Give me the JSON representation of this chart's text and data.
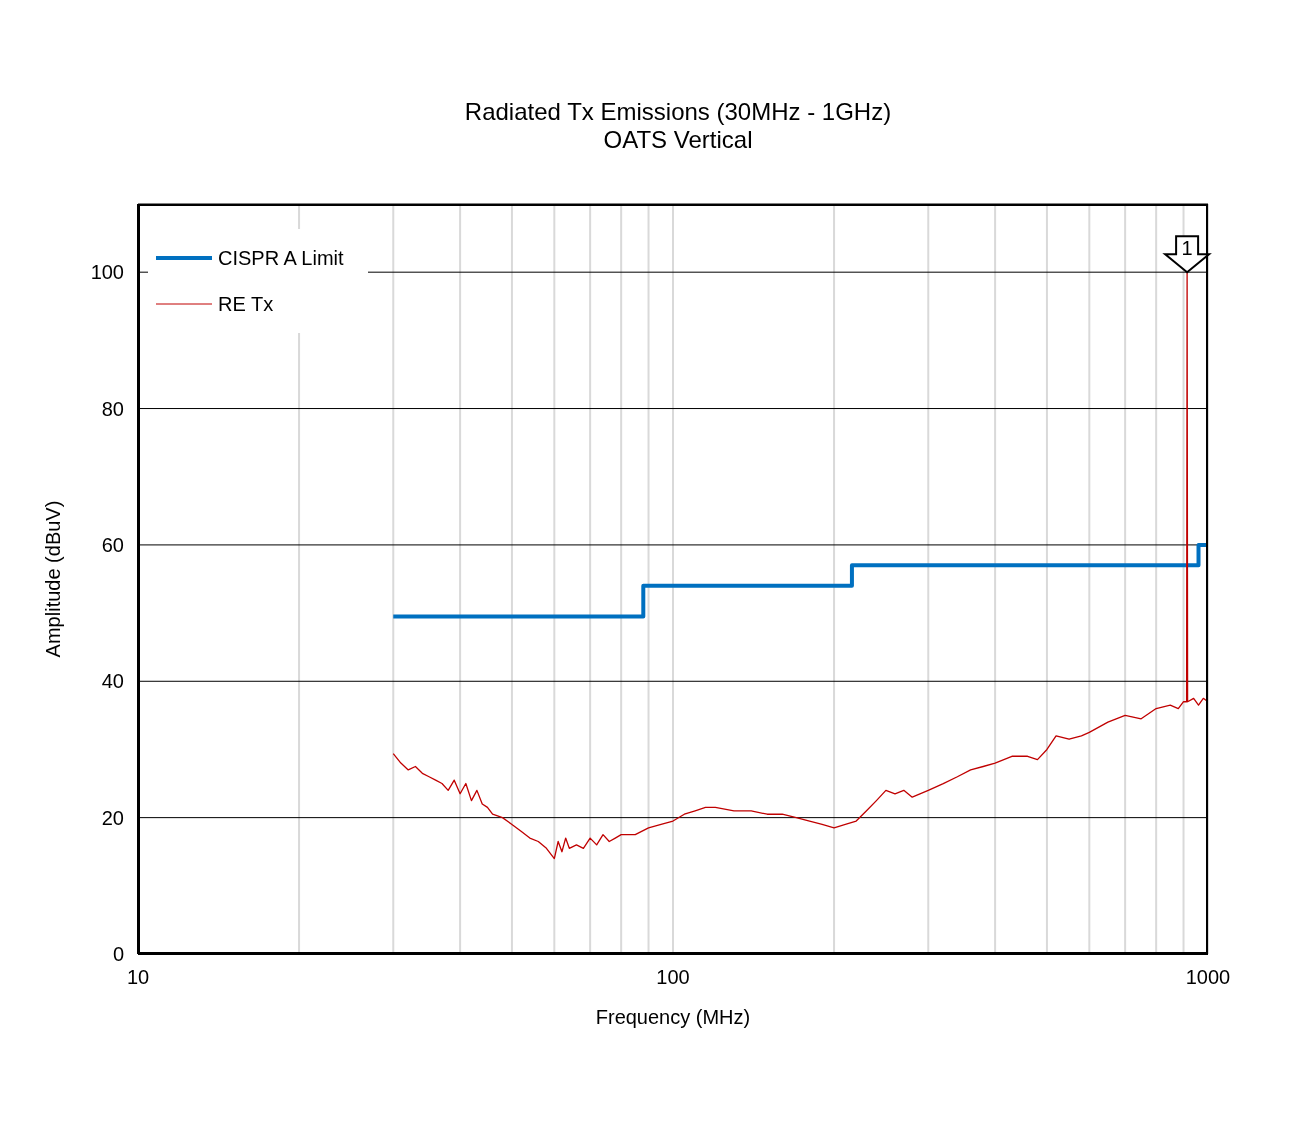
{
  "chart_data": {
    "type": "line",
    "title": "Radiated Tx Emissions (30MHz - 1GHz)",
    "subtitle": "OATS Vertical",
    "xlabel": "Frequency (MHz)",
    "ylabel": "Amplitude (dBuV)",
    "xlim": [
      10,
      1000
    ],
    "xticks": [
      10,
      {
        "value": 20,
        "label": null
      },
      {
        "value": 30,
        "label": null
      },
      {
        "value": 40,
        "label": null
      },
      {
        "value": 50,
        "label": null
      },
      {
        "value": 60,
        "label": null
      },
      {
        "value": 70,
        "label": null
      },
      {
        "value": 80,
        "label": null
      },
      {
        "value": 90,
        "label": null
      },
      100,
      {
        "value": 200,
        "label": null
      },
      {
        "value": 300,
        "label": null
      },
      {
        "value": 400,
        "label": null
      },
      {
        "value": 500,
        "label": null
      },
      {
        "value": 600,
        "label": null
      },
      {
        "value": 700,
        "label": null
      },
      {
        "value": 800,
        "label": null
      },
      {
        "value": 900,
        "label": null
      },
      1000
    ],
    "ylim": [
      0,
      110
    ],
    "yticks": [
      0,
      20,
      40,
      60,
      80,
      100
    ],
    "log": "x",
    "grid": true,
    "legend": "top left",
    "marker": "none",
    "annotations": [
      {
        "text": "1",
        "x": 914,
        "y": 100
      }
    ],
    "series": [
      {
        "name": "CISPR A Limit",
        "type": "step",
        "color": "#0070c0",
        "x": [
          30,
          88,
          216,
          960,
          1000
        ],
        "values": [
          49.5,
          54,
          57,
          60,
          60
        ]
      },
      {
        "name": "RE Tx",
        "type": "line",
        "color": "#c00000",
        "x": [
          30,
          31,
          32,
          33,
          34,
          35,
          36,
          37,
          38,
          39,
          40,
          41,
          42,
          43,
          44,
          45,
          46,
          48,
          50,
          52,
          54,
          56,
          58,
          60,
          61,
          62,
          63,
          64,
          66,
          68,
          70,
          72,
          74,
          76,
          78,
          80,
          85,
          90,
          95,
          100,
          105,
          110,
          115,
          120,
          130,
          140,
          150,
          160,
          170,
          180,
          190,
          200,
          210,
          220,
          230,
          240,
          250,
          260,
          270,
          280,
          300,
          320,
          340,
          360,
          380,
          400,
          430,
          460,
          480,
          500,
          520,
          550,
          580,
          600,
          650,
          700,
          750,
          800,
          850,
          880,
          900,
          912,
          914,
          916,
          940,
          960,
          980,
          1000
        ],
        "values": [
          29.4,
          28,
          27,
          27.5,
          26.5,
          26,
          25.5,
          25,
          24,
          25.5,
          23.5,
          25,
          22.5,
          24,
          22,
          21.5,
          20.5,
          20,
          19,
          18,
          17,
          16.5,
          15.5,
          14,
          16.5,
          15,
          17,
          15.5,
          16,
          15.5,
          17,
          16,
          17.5,
          16.5,
          17,
          17.5,
          17.5,
          18.5,
          19,
          19.5,
          20.5,
          21,
          21.5,
          21.5,
          21,
          21,
          20.5,
          20.5,
          20,
          19.5,
          19,
          18.5,
          19,
          19.5,
          21,
          22.5,
          24,
          23.5,
          24,
          23,
          24,
          25,
          26,
          27,
          27.5,
          28,
          29,
          29,
          28.5,
          30,
          32,
          31.5,
          32,
          32.5,
          34,
          35,
          34.5,
          36,
          36.5,
          36,
          37,
          37,
          100,
          37,
          37.5,
          36.5,
          37.5,
          37
        ]
      }
    ]
  }
}
